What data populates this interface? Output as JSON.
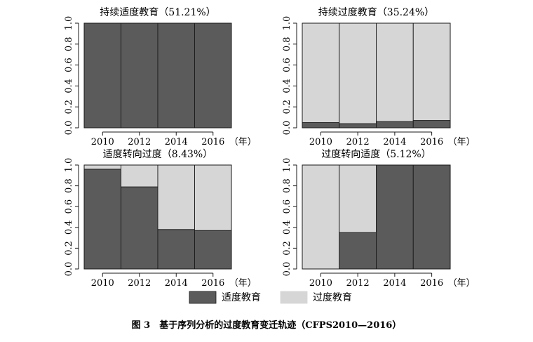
{
  "caption": "图 3　基于序列分析的过度教育变迁轨迹（CFPS2010—2016）",
  "year_unit_label": "（年）",
  "colors": {
    "appropriate": "#5b5b5b",
    "over": "#d6d6d6",
    "stroke": "#1a1a1a"
  },
  "legend": {
    "appropriate": "适度教育",
    "over": "过度教育"
  },
  "chart_data": [
    {
      "type": "bar",
      "stacked": true,
      "title": "持续适度教育（51.21%）",
      "categories": [
        "2010",
        "2012",
        "2014",
        "2016"
      ],
      "series": [
        {
          "name": "适度教育",
          "values": [
            1.0,
            1.0,
            1.0,
            1.0
          ]
        },
        {
          "name": "过度教育",
          "values": [
            0.0,
            0.0,
            0.0,
            0.0
          ]
        }
      ],
      "y_ticks": [
        "0.0",
        "0.2",
        "0.4",
        "0.6",
        "0.8",
        "1.0"
      ],
      "ylim": [
        0,
        1
      ]
    },
    {
      "type": "bar",
      "stacked": true,
      "title": "持续过度教育（35.24%）",
      "categories": [
        "2010",
        "2012",
        "2014",
        "2016"
      ],
      "series": [
        {
          "name": "适度教育",
          "values": [
            0.05,
            0.04,
            0.06,
            0.07
          ]
        },
        {
          "name": "过度教育",
          "values": [
            0.95,
            0.96,
            0.94,
            0.93
          ]
        }
      ],
      "y_ticks": [
        "0.0",
        "0.2",
        "0.4",
        "0.6",
        "0.8",
        "1.0"
      ],
      "ylim": [
        0,
        1
      ]
    },
    {
      "type": "bar",
      "stacked": true,
      "title": "适度转向过度（8.43%）",
      "categories": [
        "2010",
        "2012",
        "2014",
        "2016"
      ],
      "series": [
        {
          "name": "适度教育",
          "values": [
            0.96,
            0.79,
            0.38,
            0.37
          ]
        },
        {
          "name": "过度教育",
          "values": [
            0.04,
            0.21,
            0.62,
            0.63
          ]
        }
      ],
      "y_ticks": [
        "0.0",
        "0.2",
        "0.4",
        "0.6",
        "0.8",
        "1.0"
      ],
      "ylim": [
        0,
        1
      ]
    },
    {
      "type": "bar",
      "stacked": true,
      "title": "过度转向适度（5.12%）",
      "categories": [
        "2010",
        "2012",
        "2014",
        "2016"
      ],
      "series": [
        {
          "name": "适度教育",
          "values": [
            0.0,
            0.35,
            1.0,
            1.0
          ]
        },
        {
          "name": "过度教育",
          "values": [
            1.0,
            0.65,
            0.0,
            0.0
          ]
        }
      ],
      "y_ticks": [
        "0.0",
        "0.2",
        "0.4",
        "0.6",
        "0.8",
        "1.0"
      ],
      "ylim": [
        0,
        1
      ]
    }
  ]
}
